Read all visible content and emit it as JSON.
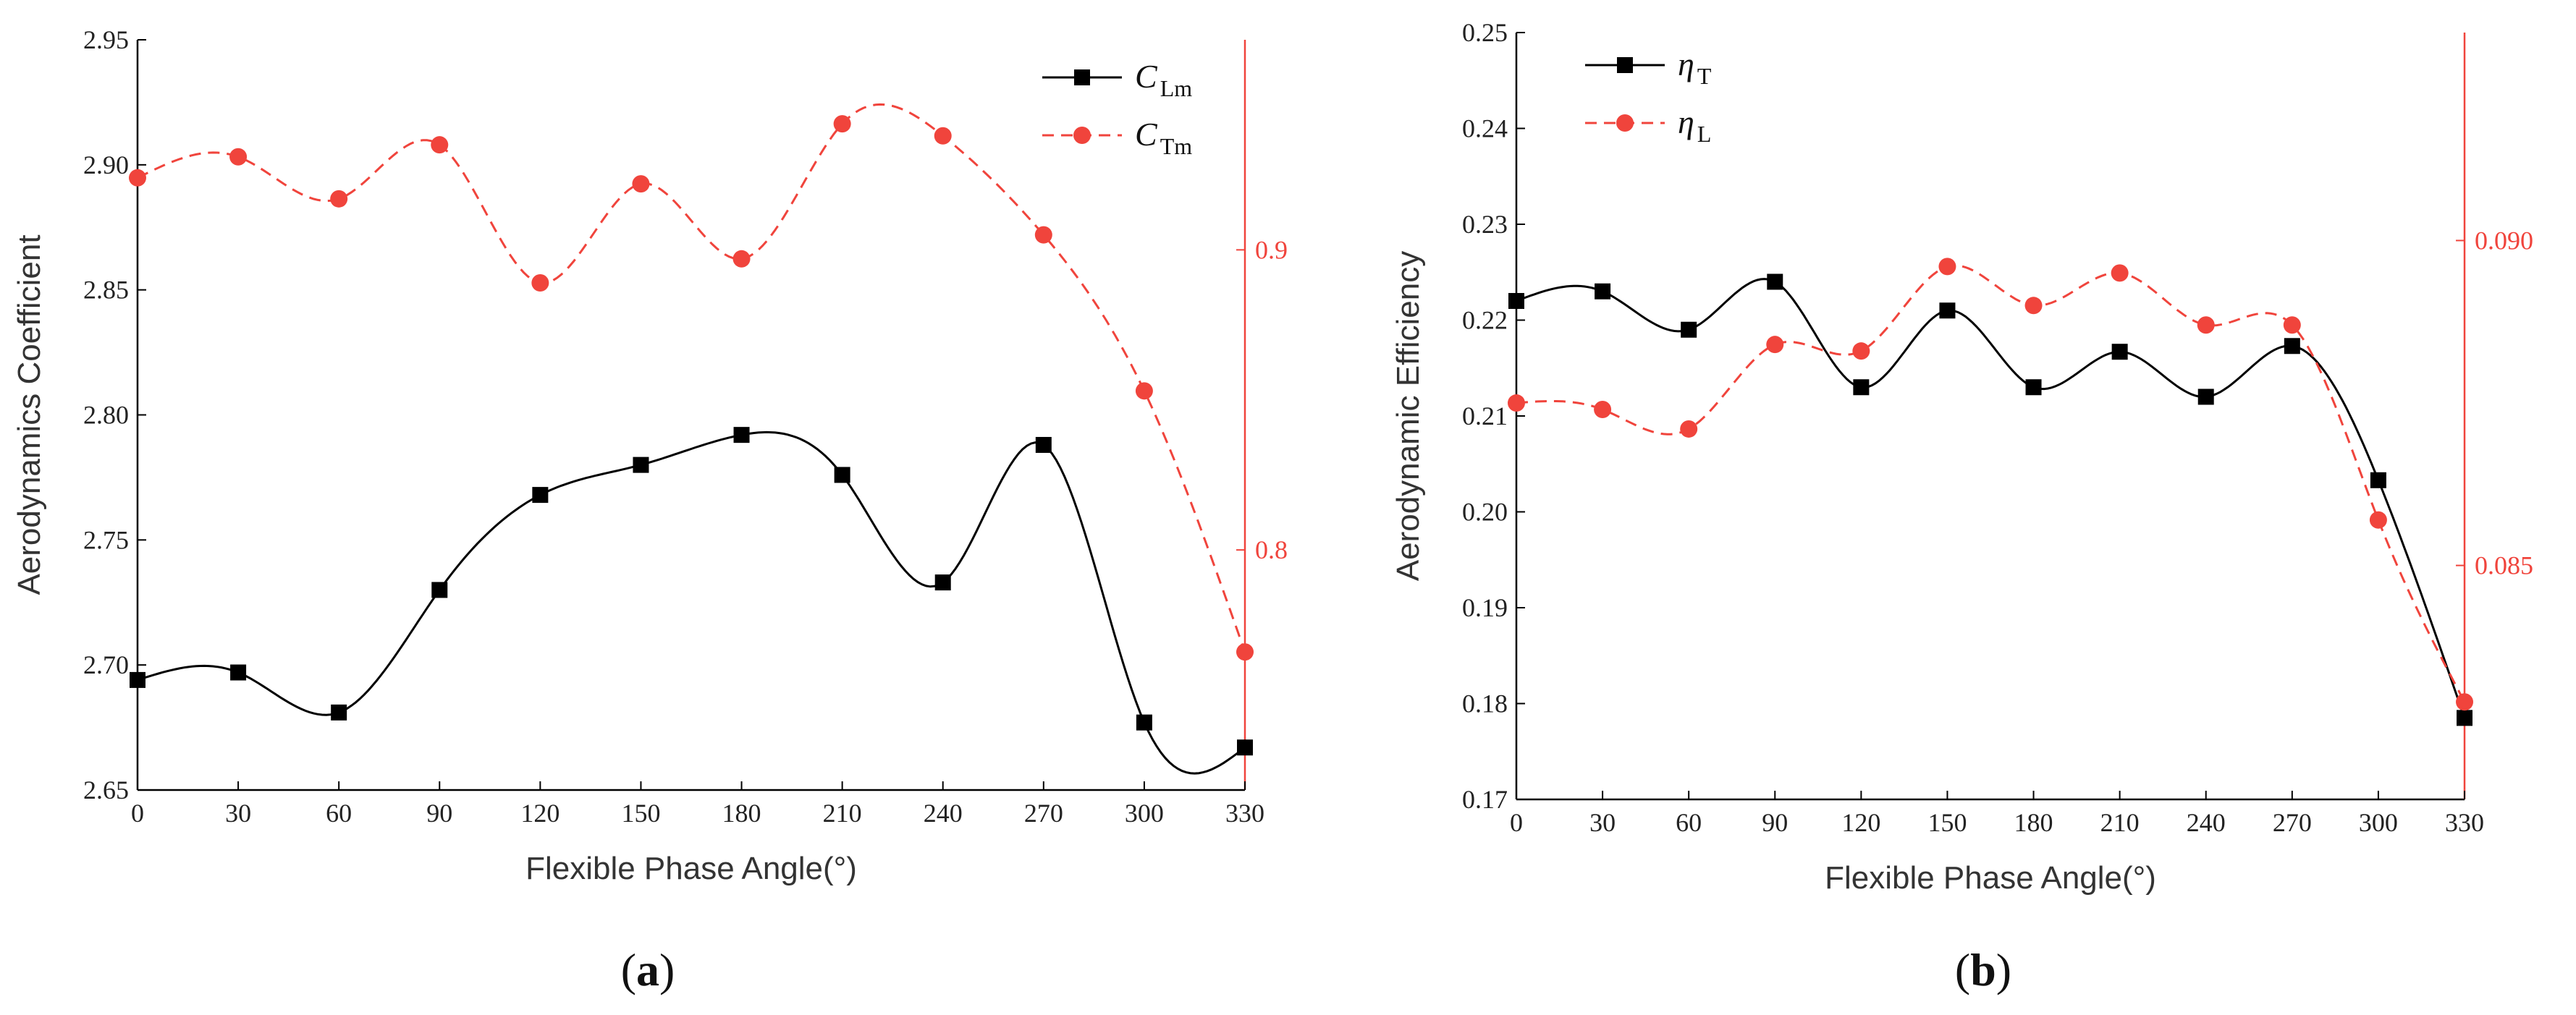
{
  "colors": {
    "primary": "#000000",
    "secondary": "#f0443c"
  },
  "chart_data": [
    {
      "type": "line",
      "panel_label_open": "(",
      "panel_label_letter": "a",
      "panel_label_close": ")",
      "xlabel": "Flexible Phase Angle(°)",
      "ylabel": "Aerodynamics Coefficient",
      "x": [
        0,
        30,
        60,
        90,
        120,
        150,
        180,
        210,
        240,
        270,
        300,
        330
      ],
      "xlim": [
        0,
        330
      ],
      "ylim": [
        2.65,
        2.95
      ],
      "yticks": [
        2.65,
        2.7,
        2.75,
        2.8,
        2.85,
        2.9,
        2.95
      ],
      "ytick_labels": [
        "2.65",
        "2.70",
        "2.75",
        "2.80",
        "2.85",
        "2.90",
        "2.95"
      ],
      "y2lim": [
        0.72,
        0.97
      ],
      "y2ticks": [
        0.8,
        0.9
      ],
      "y2tick_labels": [
        "0.8",
        "0.9"
      ],
      "legend_position": "top-right",
      "series": [
        {
          "name": "C_Lm",
          "symbol": "C",
          "sub": "Lm",
          "axis": "left",
          "style": "solid",
          "marker": "square",
          "values": [
            2.694,
            2.697,
            2.681,
            2.73,
            2.768,
            2.78,
            2.792,
            2.776,
            2.733,
            2.788,
            2.677,
            2.667
          ]
        },
        {
          "name": "C_Tm",
          "symbol": "C",
          "sub": "Tm",
          "axis": "right",
          "style": "dashed",
          "marker": "circle",
          "values": [
            0.924,
            0.931,
            0.917,
            0.935,
            0.889,
            0.922,
            0.897,
            0.942,
            0.938,
            0.905,
            0.853,
            0.766
          ]
        }
      ]
    },
    {
      "type": "line",
      "panel_label_open": "(",
      "panel_label_letter": "b",
      "panel_label_close": ")",
      "xlabel": "Flexible Phase Angle(°)",
      "ylabel": "Aerodynamic Efficiency",
      "x": [
        0,
        30,
        60,
        90,
        120,
        150,
        180,
        210,
        240,
        270,
        300,
        330
      ],
      "xlim": [
        0,
        330
      ],
      "ylim": [
        0.17,
        0.25
      ],
      "yticks": [
        0.17,
        0.18,
        0.19,
        0.2,
        0.21,
        0.22,
        0.23,
        0.24,
        0.25
      ],
      "ytick_labels": [
        "0.17",
        "0.18",
        "0.19",
        "0.20",
        "0.21",
        "0.22",
        "0.23",
        "0.24",
        "0.25"
      ],
      "y2lim": [
        0.0814,
        0.0932
      ],
      "y2ticks": [
        0.085,
        0.09
      ],
      "y2tick_labels": [
        "0.085",
        "0.090"
      ],
      "legend_position": "top-left",
      "series": [
        {
          "name": "η_T",
          "symbol": "η",
          "sub": "T",
          "axis": "left",
          "style": "solid",
          "marker": "square",
          "values": [
            0.222,
            0.223,
            0.219,
            0.224,
            0.213,
            0.221,
            0.213,
            0.2167,
            0.212,
            0.2173,
            0.2033,
            0.1785
          ]
        },
        {
          "name": "η_L",
          "symbol": "η",
          "sub": "L",
          "axis": "right",
          "style": "dashed",
          "marker": "circle",
          "values": [
            0.0875,
            0.0874,
            0.0871,
            0.0884,
            0.0883,
            0.0896,
            0.089,
            0.0895,
            0.0887,
            0.0887,
            0.0857,
            0.0829
          ]
        }
      ]
    }
  ]
}
